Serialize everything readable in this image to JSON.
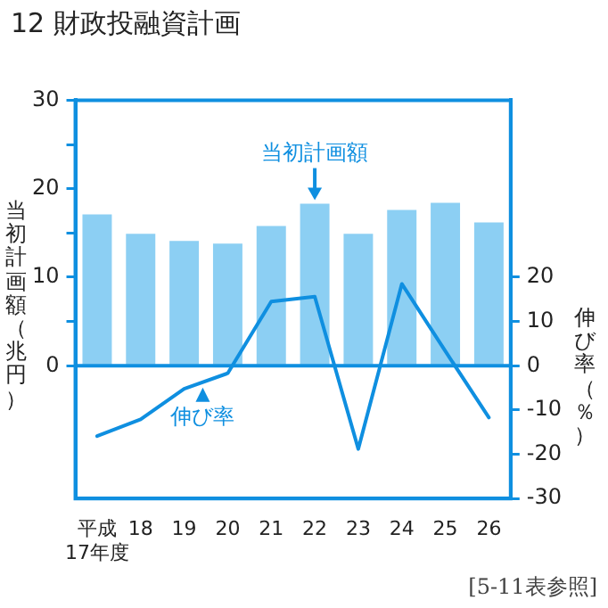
{
  "chart_data": {
    "type": "bar",
    "title": "12 財政投融資計画",
    "ylabel": "当初計画額（兆円）",
    "y2label": "伸び率（％）",
    "categories": [
      "平成17年度",
      "18",
      "19",
      "20",
      "21",
      "22",
      "23",
      "24",
      "25",
      "26"
    ],
    "series": [
      {
        "name": "当初計画額",
        "type": "bar",
        "color": "#8ccff3",
        "values": [
          17.1,
          14.9,
          14.1,
          13.8,
          15.8,
          18.3,
          14.9,
          17.6,
          18.4,
          16.2
        ]
      },
      {
        "name": "伸び率",
        "type": "line",
        "axis": "y2",
        "color": "#0f8fe0",
        "values": [
          -15.9,
          -12.1,
          -5.2,
          -1.7,
          14.5,
          15.6,
          -18.8,
          18.5,
          3.3,
          -11.7
        ]
      }
    ],
    "ylim": [
      -15,
      30
    ],
    "yticks": [
      0,
      {
        "value": 5,
        "label": null
      },
      10,
      {
        "value": 15,
        "label": null
      },
      20,
      {
        "value": 25,
        "label": null
      },
      30
    ],
    "y2lim": [
      -30,
      60
    ],
    "y2ticks": [
      -30,
      -20,
      -10,
      0,
      10,
      20
    ],
    "annotations": [
      "[5-11表参照]"
    ],
    "ref_lines": [
      {
        "axis": "y",
        "value": 0,
        "color": "#0f8fe0"
      }
    ],
    "grid": false,
    "marker": "none"
  }
}
